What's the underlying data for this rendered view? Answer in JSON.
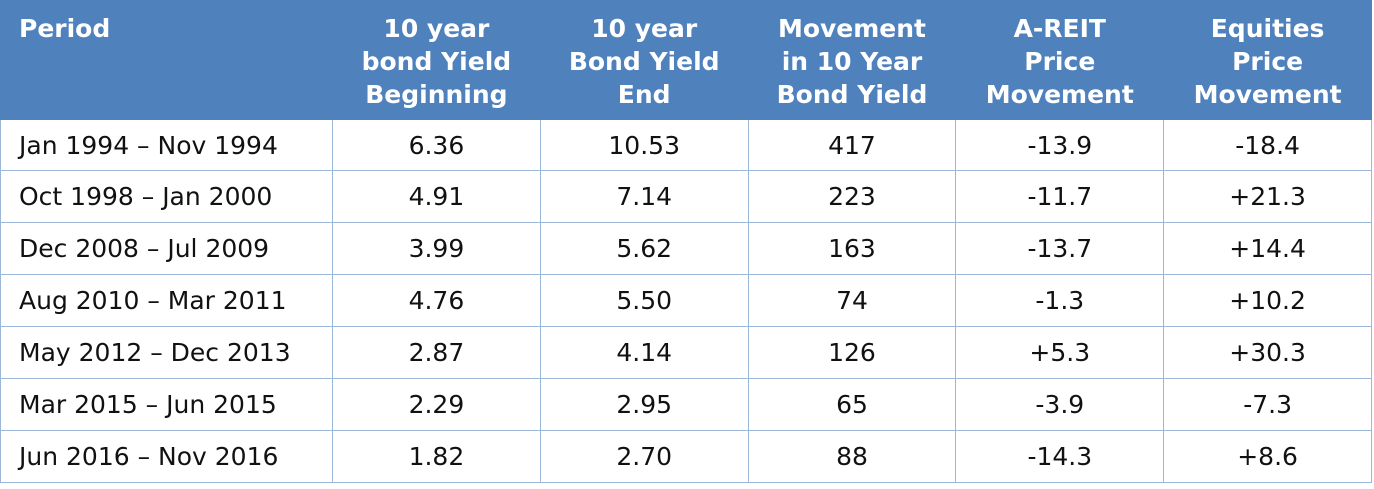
{
  "table": {
    "header": [
      [
        "Period"
      ],
      [
        "10 year",
        "bond Yield",
        "Beginning"
      ],
      [
        "10 year",
        "Bond Yield",
        "End"
      ],
      [
        "Movement",
        "in 10 Year",
        "Bond Yield"
      ],
      [
        "A-REIT",
        "Price",
        "Movement"
      ],
      [
        "Equities",
        "Price",
        "Movement"
      ]
    ],
    "rows": [
      [
        "Jan 1994 – Nov 1994",
        "6.36",
        "10.53",
        "417",
        "-13.9",
        "-18.4"
      ],
      [
        "Oct 1998 – Jan 2000",
        "4.91",
        "7.14",
        "223",
        "-11.7",
        "+21.3"
      ],
      [
        "Dec 2008 – Jul 2009",
        "3.99",
        "5.62",
        "163",
        "-13.7",
        "+14.4"
      ],
      [
        "Aug 2010 – Mar 2011",
        "4.76",
        "5.50",
        "74",
        "-1.3",
        "+10.2"
      ],
      [
        "May 2012 – Dec 2013",
        "2.87",
        "4.14",
        "126",
        "+5.3",
        "+30.3"
      ],
      [
        "Mar 2015 – Jun 2015",
        "2.29",
        "2.95",
        "65",
        "-3.9",
        "-7.3"
      ],
      [
        "Jun 2016 – Nov 2016",
        "1.82",
        "2.70",
        "88",
        "-14.3",
        "+8.6"
      ]
    ]
  }
}
